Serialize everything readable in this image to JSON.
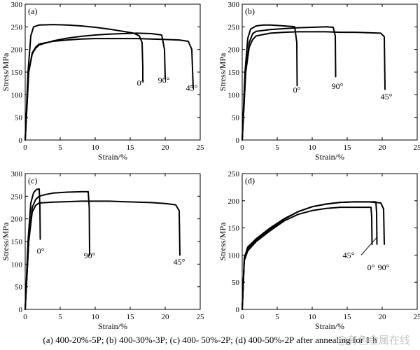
{
  "figure": {
    "caption": "(a) 400-20%-5P; (b) 400-30%-3P; (c) 400- 50%-2P; (d) 400-50%-2P after annealing for 1 h",
    "watermark": "@有色金属在线"
  },
  "chart_data": [
    {
      "type": "line",
      "panel_label": "(a)",
      "xlabel": "Strain/%",
      "ylabel": "Stress/MPa",
      "xlim": [
        0,
        25
      ],
      "ylim": [
        0,
        300
      ],
      "xticks": [
        0,
        5,
        10,
        15,
        20,
        25
      ],
      "yticks": [
        0,
        50,
        100,
        150,
        200,
        250,
        300
      ],
      "grid": false,
      "series": [
        {
          "name": "0°",
          "x": [
            0,
            0.4,
            0.8,
            1.2,
            2,
            4,
            6,
            8,
            10,
            12,
            14,
            15.5,
            16.3,
            16.7,
            16.8,
            16.8
          ],
          "y": [
            0,
            150,
            230,
            250,
            254,
            255,
            254,
            252,
            249,
            245,
            240,
            236,
            230,
            215,
            160,
            130
          ]
        },
        {
          "name": "90°",
          "x": [
            0,
            0.5,
            1,
            1.5,
            2,
            4,
            6,
            8,
            10,
            12,
            14,
            16,
            18,
            19.5,
            19.9,
            20
          ],
          "y": [
            0,
            150,
            190,
            203,
            210,
            219,
            225,
            229,
            232,
            234,
            235,
            236,
            235,
            232,
            200,
            135
          ]
        },
        {
          "name": "45°",
          "x": [
            0,
            0.5,
            1,
            1.5,
            2,
            4,
            6,
            8,
            10,
            12,
            14,
            16,
            18,
            20,
            22,
            23.3,
            23.8,
            24
          ],
          "y": [
            0,
            150,
            192,
            205,
            212,
            218,
            221,
            223,
            224,
            224,
            224,
            224,
            223,
            222,
            221,
            218,
            200,
            115
          ]
        }
      ],
      "annotations": [
        {
          "text": "0°",
          "x": 16.5,
          "y": 120
        },
        {
          "text": "90°",
          "x": 19.8,
          "y": 126
        },
        {
          "text": "45°",
          "x": 23.8,
          "y": 109
        }
      ]
    },
    {
      "type": "line",
      "panel_label": "(b)",
      "xlabel": "Strain/%",
      "ylabel": "Stress/MPa",
      "xlim": [
        0,
        25
      ],
      "ylim": [
        0,
        300
      ],
      "xticks": [
        0,
        5,
        10,
        15,
        20,
        25
      ],
      "yticks": [
        0,
        50,
        100,
        150,
        200,
        250,
        300
      ],
      "grid": false,
      "series": [
        {
          "name": "0°",
          "x": [
            0,
            0.4,
            0.8,
            1.2,
            2,
            3,
            4,
            5,
            6,
            7,
            7.5,
            7.8,
            7.85
          ],
          "y": [
            0,
            150,
            225,
            245,
            252,
            254,
            254,
            253,
            252,
            251,
            250,
            215,
            120
          ]
        },
        {
          "name": "90°",
          "x": [
            0,
            0.5,
            1,
            1.5,
            2,
            4,
            6,
            8,
            10,
            12,
            13,
            13.3,
            13.35
          ],
          "y": [
            0,
            150,
            215,
            235,
            240,
            244,
            246,
            248,
            249,
            250,
            249,
            230,
            140
          ]
        },
        {
          "name": "45°",
          "x": [
            0,
            0.5,
            1,
            1.5,
            2,
            4,
            6,
            8,
            10,
            12,
            14,
            16,
            18,
            19.8,
            20.3,
            20.4
          ],
          "y": [
            0,
            150,
            205,
            222,
            230,
            236,
            238,
            239,
            239,
            239,
            238,
            238,
            237,
            236,
            228,
            112
          ]
        }
      ],
      "annotations": [
        {
          "text": "0°",
          "x": 7.8,
          "y": 104
        },
        {
          "text": "90°",
          "x": 13.6,
          "y": 113
        },
        {
          "text": "45°",
          "x": 20.6,
          "y": 90
        }
      ]
    },
    {
      "type": "line",
      "panel_label": "(c)",
      "xlabel": "Strain/%",
      "ylabel": "Stress/MPa",
      "xlim": [
        0,
        25
      ],
      "ylim": [
        0,
        300
      ],
      "xticks": [
        0,
        5,
        10,
        15,
        20,
        25
      ],
      "yticks": [
        0,
        50,
        100,
        150,
        200,
        250,
        300
      ],
      "grid": false,
      "series": [
        {
          "name": "0°",
          "x": [
            0,
            0.4,
            0.8,
            1.2,
            1.6,
            2,
            2.1,
            2.15
          ],
          "y": [
            0,
            150,
            235,
            258,
            265,
            266,
            230,
            155
          ]
        },
        {
          "name": "90°",
          "x": [
            0,
            0.5,
            1,
            1.5,
            2,
            3,
            4,
            6,
            8,
            9,
            9.15,
            9.2
          ],
          "y": [
            0,
            150,
            225,
            243,
            250,
            254,
            257,
            259,
            260,
            260,
            225,
            120
          ]
        },
        {
          "name": "45°",
          "x": [
            0,
            0.5,
            1,
            1.5,
            2,
            4,
            6,
            8,
            10,
            12,
            14,
            16,
            18,
            20,
            21.5,
            22,
            22.1
          ],
          "y": [
            0,
            150,
            215,
            230,
            235,
            237,
            238,
            239,
            239,
            239,
            238,
            237,
            236,
            234,
            231,
            218,
            120
          ]
        }
      ],
      "annotations": [
        {
          "text": "0°",
          "x": 2.2,
          "y": 123
        },
        {
          "text": "90°",
          "x": 9.2,
          "y": 113
        },
        {
          "text": "45°",
          "x": 22,
          "y": 99
        }
      ]
    },
    {
      "type": "line",
      "panel_label": "(d)",
      "xlabel": "Strain/%",
      "ylabel": "Stress/MPa",
      "xlim": [
        0,
        25
      ],
      "ylim": [
        0,
        250
      ],
      "xticks": [
        0,
        5,
        10,
        15,
        20,
        25
      ],
      "yticks": [
        0,
        50,
        100,
        150,
        200,
        250
      ],
      "grid": false,
      "series": [
        {
          "name": "0°",
          "x": [
            0,
            0.3,
            0.8,
            2,
            4,
            6,
            8,
            10,
            12,
            14,
            16,
            17.5,
            18.4,
            18.5,
            18.55
          ],
          "y": [
            0,
            90,
            108,
            125,
            145,
            163,
            175,
            182,
            186,
            188,
            188,
            188,
            188,
            170,
            120
          ]
        },
        {
          "name": "45°",
          "x": [
            0,
            0.3,
            0.8,
            2,
            4,
            6,
            8,
            10,
            12,
            14,
            16,
            18,
            19.1,
            19.2,
            19.25
          ],
          "y": [
            0,
            92,
            112,
            128,
            148,
            166,
            180,
            189,
            194,
            197,
            198,
            198,
            198,
            178,
            120
          ]
        },
        {
          "name": "90°",
          "x": [
            0,
            0.3,
            0.8,
            2,
            4,
            6,
            8,
            10,
            12,
            14,
            16,
            18,
            19.8,
            20.2,
            20.3
          ],
          "y": [
            0,
            95,
            115,
            130,
            150,
            167,
            180,
            189,
            194,
            197,
            198,
            198,
            196,
            185,
            120
          ]
        }
      ],
      "annotations": [
        {
          "text": "45°",
          "x": 15.2,
          "y": 95
        },
        {
          "text": "0°",
          "x": 18.4,
          "y": 72
        },
        {
          "text": "90°",
          "x": 20.2,
          "y": 72
        }
      ]
    }
  ]
}
